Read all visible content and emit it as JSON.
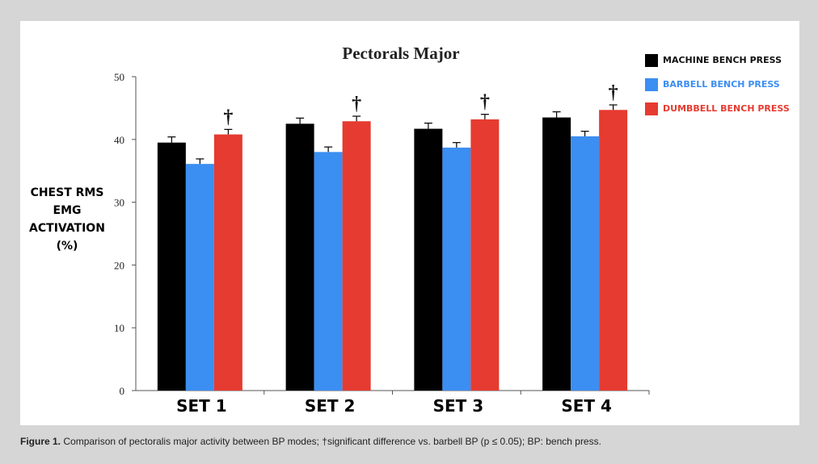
{
  "chart_data": {
    "type": "bar",
    "title": "Pectorals Major",
    "ylabel_lines": [
      "CHEST RMS",
      "EMG",
      "ACTIVATION",
      "(%)"
    ],
    "xlabel": "",
    "categories": [
      "SET 1",
      "SET 2",
      "SET 3",
      "SET 4"
    ],
    "ylim": [
      0,
      50
    ],
    "yticks": [
      0,
      10,
      20,
      30,
      40,
      50
    ],
    "grid": false,
    "legend_position": "top-right",
    "series": [
      {
        "name": "MACHINE BENCH PRESS",
        "color": "#000000",
        "values": [
          39.5,
          42.5,
          41.7,
          43.5
        ],
        "errors": [
          0.9,
          0.9,
          0.9,
          0.9
        ]
      },
      {
        "name": "BARBELL BENCH PRESS",
        "color": "#3b8ef2",
        "values": [
          36.1,
          38.0,
          38.7,
          40.5
        ],
        "errors": [
          0.8,
          0.8,
          0.8,
          0.8
        ]
      },
      {
        "name": "DUMBBELL BENCH PRESS",
        "color": "#e63b30",
        "values": [
          40.8,
          42.9,
          43.2,
          44.7
        ],
        "errors": [
          0.8,
          0.8,
          0.8,
          0.8
        ]
      }
    ],
    "significance_marker": "†",
    "significance_marks": [
      {
        "category": "SET 1",
        "series": "DUMBBELL BENCH PRESS"
      },
      {
        "category": "SET 2",
        "series": "DUMBBELL BENCH PRESS"
      },
      {
        "category": "SET 3",
        "series": "DUMBBELL BENCH PRESS"
      },
      {
        "category": "SET 4",
        "series": "DUMBBELL BENCH PRESS"
      }
    ]
  },
  "caption": {
    "label": "Figure 1.",
    "text": "Comparison of pectoralis major activity between BP modes; †significant difference vs. barbell BP (p ≤ 0.05); BP: bench press."
  }
}
